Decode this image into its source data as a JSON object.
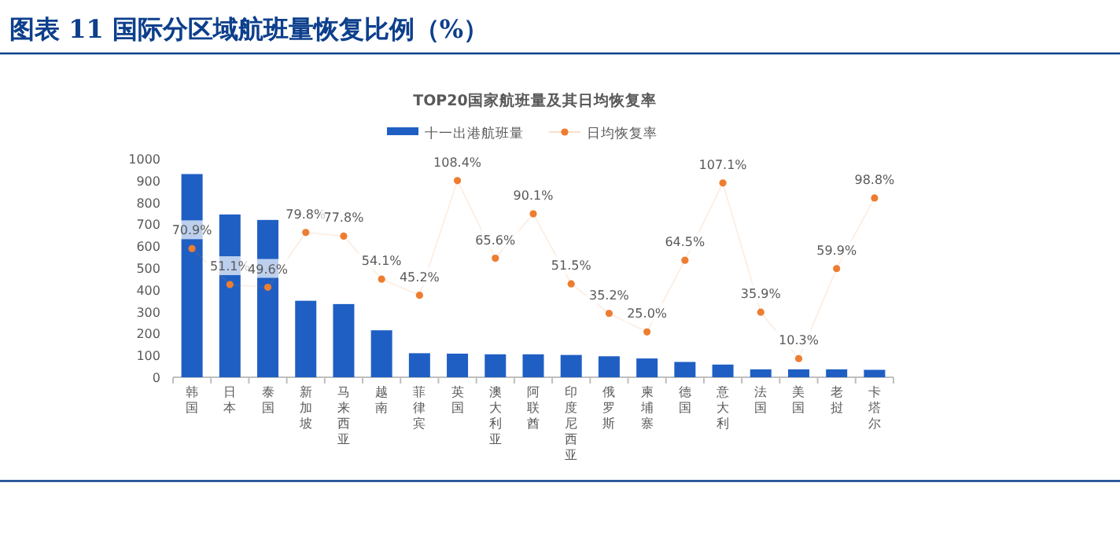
{
  "chart_data": {
    "type": "bar",
    "title": "图表 11 国际分区域航班量恢复比例（%）",
    "subtitle": "TOP20国家航班量及其日均恢复率",
    "categories": [
      "韩国",
      "日本",
      "泰国",
      "新加坡",
      "马来西亚",
      "越南",
      "菲律宾",
      "英国",
      "澳大利亚",
      "阿联酋",
      "印度尼西亚",
      "俄罗斯",
      "柬埔寨",
      "德国",
      "意大利",
      "法国",
      "美国",
      "老挝",
      "卡塔尔"
    ],
    "series": [
      {
        "name": "十一出港航班量",
        "color": "#1f5fc4",
        "values": [
          930,
          745,
          720,
          350,
          335,
          215,
          110,
          108,
          105,
          105,
          102,
          96,
          86,
          70,
          58,
          36,
          36,
          36,
          34
        ]
      },
      {
        "name": "日均恢复率",
        "type": "line",
        "axis": "y2",
        "color": "#ed7d31",
        "marker": "circle",
        "line_style": "solid",
        "values": [
          70.9,
          51.1,
          49.6,
          79.8,
          77.8,
          54.1,
          45.2,
          108.4,
          65.6,
          90.1,
          51.5,
          35.2,
          25.0,
          64.5,
          107.1,
          35.9,
          10.3,
          59.9,
          98.8
        ],
        "value_labels": [
          "70.9%",
          "51.1%",
          "49.6%",
          "79.8%",
          "77.8%",
          "54.1%",
          "45.2%",
          "108.4%",
          "65.6%",
          "90.1%",
          "51.5%",
          "35.2%",
          "25.0%",
          "64.5%",
          "107.1%",
          "35.9%",
          "10.3%",
          "59.9%",
          "98.8%"
        ]
      }
    ],
    "ylim": [
      0,
      1000
    ],
    "yticks": [
      0,
      100,
      200,
      300,
      400,
      500,
      600,
      700,
      800,
      900,
      1000
    ],
    "legend": "top",
    "grid": false
  }
}
